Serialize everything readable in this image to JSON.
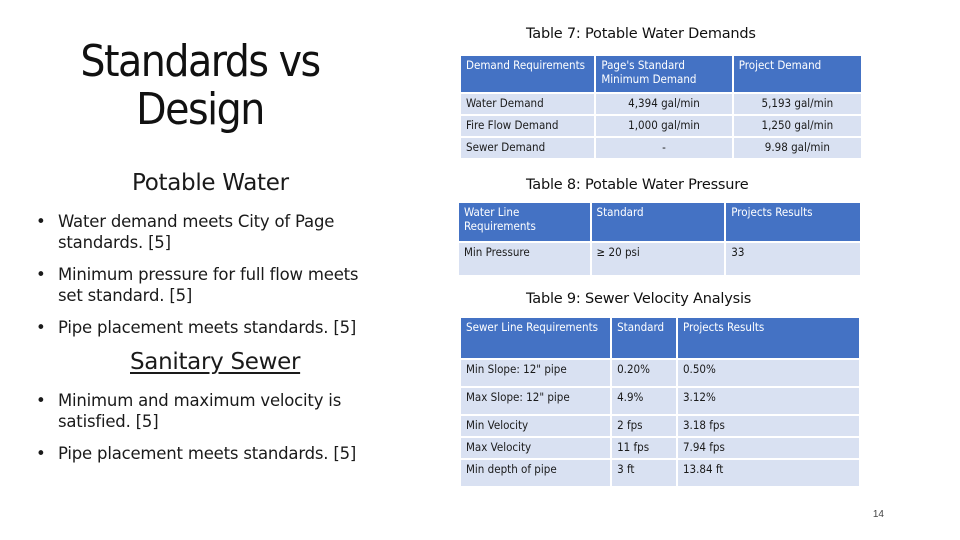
{
  "slide": {
    "title_line1": "Standards vs",
    "title_line2": "Design",
    "page_number": "14"
  },
  "potable": {
    "heading": "Potable Water",
    "bullets": [
      "Water demand meets City of Page standards. [5]",
      "Minimum pressure for full flow meets set standard. [5]",
      "Pipe placement meets standards. [5]"
    ]
  },
  "sanitary": {
    "heading": "Sanitary Sewer",
    "bullets": [
      "Minimum and maximum velocity is satisfied. [5]",
      "Pipe placement meets standards. [5]"
    ]
  },
  "table7": {
    "caption": "Table 7: Potable Water Demands",
    "headers": [
      "Demand Requirements",
      "Page's Standard Minimum Demand",
      "Project Demand"
    ],
    "rows": [
      [
        "Water Demand",
        "4,394 gal/min",
        "5,193 gal/min"
      ],
      [
        "Fire Flow Demand",
        "1,000 gal/min",
        "1,250 gal/min"
      ],
      [
        "Sewer Demand",
        "-",
        "9.98 gal/min"
      ]
    ]
  },
  "table8": {
    "caption": "Table 8: Potable Water Pressure",
    "headers": [
      "Water Line Requirements",
      "Standard",
      "Projects Results"
    ],
    "rows": [
      [
        "Min Pressure",
        "≥ 20 psi",
        "33"
      ]
    ]
  },
  "table9": {
    "caption": "Table 9: Sewer Velocity Analysis",
    "headers": [
      "Sewer Line Requirements",
      "Standard",
      "Projects Results"
    ],
    "rows": [
      [
        "Min Slope: 12\" pipe",
        "0.20%",
        "0.50%"
      ],
      [
        "Max Slope: 12\" pipe",
        "4.9%",
        "3.12%"
      ],
      [
        "Min Velocity",
        "2 fps",
        "3.18 fps"
      ],
      [
        "Max Velocity",
        "11 fps",
        "7.94 fps"
      ],
      [
        "Min depth of pipe",
        "3 ft",
        "13.84 ft"
      ]
    ]
  },
  "colors": {
    "header_blue": "#4472c4",
    "row_alt": "#d9e1f2"
  }
}
